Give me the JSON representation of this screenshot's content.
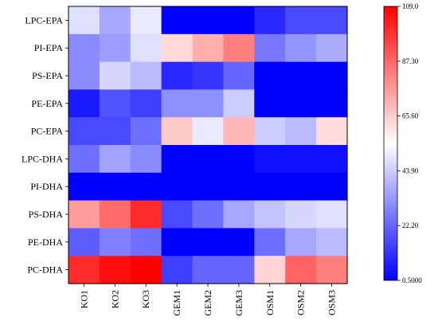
{
  "chart_data": {
    "type": "heatmap",
    "title": "",
    "xlabel": "",
    "ylabel": "",
    "columns": [
      "KO1",
      "KO2",
      "KO3",
      "GEM1",
      "GEM2",
      "GEM3",
      "OSM1",
      "OSM2",
      "OSM3"
    ],
    "rows": [
      "LPC-EPA",
      "PI-EPA",
      "PS-EPA",
      "PE-EPA",
      "PC-EPA",
      "LPC-DHA",
      "PI-DHA",
      "PS-DHA",
      "PE-DHA",
      "PC-DHA"
    ],
    "values": [
      [
        48,
        36,
        50,
        0.5,
        0.5,
        0.5,
        9,
        16,
        16
      ],
      [
        30,
        34,
        48,
        63,
        72,
        82,
        26,
        32,
        37
      ],
      [
        30,
        46,
        40,
        9,
        12,
        22,
        0.5,
        0.5,
        0.5
      ],
      [
        6,
        18,
        14,
        31,
        31,
        44,
        0.5,
        0.5,
        0.5
      ],
      [
        16,
        16,
        24,
        66,
        50,
        70,
        44,
        40,
        62
      ],
      [
        24,
        35,
        30,
        0.5,
        0.5,
        0.5,
        4,
        4,
        4
      ],
      [
        0.5,
        0.5,
        0.5,
        0.5,
        0.5,
        0.5,
        0.5,
        0.5,
        0.5
      ],
      [
        76,
        86,
        100,
        16,
        24,
        36,
        42,
        46,
        48
      ],
      [
        20,
        28,
        24,
        0.5,
        0.5,
        0.5,
        24,
        36,
        40
      ],
      [
        100,
        106,
        109,
        14,
        22,
        22,
        64,
        88,
        82
      ]
    ],
    "vmin": 0.5,
    "vmax": 109.0,
    "colormap": [
      "#0000ff",
      "#ffffff",
      "#ff0000"
    ],
    "colorbar_ticks": [
      "0.5000",
      "22.20",
      "43.90",
      "65.60",
      "87.30",
      "109.0"
    ],
    "colorbar_tick_values": [
      0.5,
      22.2,
      43.9,
      65.6,
      87.3,
      109.0
    ],
    "grid": false,
    "legend": "colorbar-right"
  }
}
